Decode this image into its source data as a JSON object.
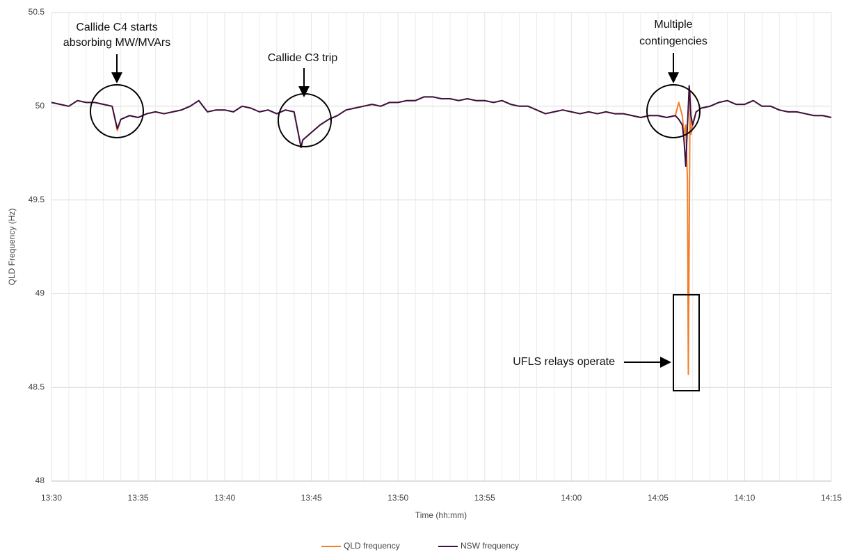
{
  "chart_data": {
    "type": "line",
    "y_label": "QLD Frequency (Hz)",
    "x_label": "Time (hh:mm)",
    "x": [
      810,
      810.5,
      811,
      811.5,
      812,
      812.5,
      813,
      813.5,
      813.8,
      814,
      814.5,
      815,
      815.5,
      816,
      816.5,
      817,
      817.5,
      818,
      818.5,
      819,
      819.5,
      820,
      820.5,
      821,
      821.5,
      822,
      822.5,
      823,
      823.5,
      824,
      824.4,
      824.5,
      825,
      825.5,
      826,
      826.5,
      827,
      827.5,
      828,
      828.5,
      829,
      829.5,
      830,
      830.5,
      831,
      831.5,
      832,
      832.5,
      833,
      833.5,
      834,
      834.5,
      835,
      835.5,
      836,
      836.5,
      837,
      837.5,
      838,
      838.5,
      839,
      839.5,
      840,
      840.5,
      841,
      841.5,
      842,
      842.5,
      843,
      843.5,
      844,
      844.5,
      845,
      845.5,
      846,
      846.2,
      846.4,
      846.5,
      846.6,
      846.7,
      846.75,
      846.8,
      846.85,
      846.9,
      847,
      847.2,
      847.5,
      848,
      848.5,
      849,
      849.5,
      850,
      850.5,
      851,
      851.5,
      852,
      852.5,
      853,
      853.5,
      854,
      854.5,
      855
    ],
    "series": [
      {
        "name": "QLD frequency",
        "color": "#f07f2a",
        "values": [
          50.02,
          50.01,
          50.0,
          50.03,
          50.02,
          50.02,
          50.01,
          50.0,
          49.87,
          49.93,
          49.95,
          49.94,
          49.96,
          49.97,
          49.96,
          49.97,
          49.98,
          50.0,
          50.03,
          49.97,
          49.98,
          49.98,
          49.97,
          50.0,
          49.99,
          49.97,
          49.98,
          49.96,
          49.98,
          49.97,
          49.78,
          49.82,
          49.86,
          49.9,
          49.93,
          49.95,
          49.98,
          49.99,
          50.0,
          50.01,
          50.0,
          50.02,
          50.02,
          50.03,
          50.03,
          50.05,
          50.05,
          50.04,
          50.04,
          50.03,
          50.04,
          50.03,
          50.03,
          50.02,
          50.03,
          50.01,
          50.0,
          50.0,
          49.98,
          49.96,
          49.97,
          49.98,
          49.97,
          49.96,
          49.97,
          49.96,
          49.97,
          49.96,
          49.96,
          49.95,
          49.94,
          49.95,
          49.95,
          49.94,
          49.95,
          50.02,
          49.95,
          49.85,
          49.9,
          49.6,
          48.57,
          49.3,
          50.08,
          49.85,
          49.9,
          49.97,
          49.99,
          50.0,
          50.02,
          50.03,
          50.01,
          50.01,
          50.03,
          50.0,
          50.0,
          49.98,
          49.97,
          49.97,
          49.96,
          49.95,
          49.95,
          49.94
        ]
      },
      {
        "name": "NSW frequency",
        "color": "#3a1145",
        "values": [
          50.02,
          50.01,
          50.0,
          50.03,
          50.02,
          50.02,
          50.01,
          50.0,
          49.88,
          49.93,
          49.95,
          49.94,
          49.96,
          49.97,
          49.96,
          49.97,
          49.98,
          50.0,
          50.03,
          49.97,
          49.98,
          49.98,
          49.97,
          50.0,
          49.99,
          49.97,
          49.98,
          49.96,
          49.98,
          49.97,
          49.78,
          49.82,
          49.86,
          49.9,
          49.93,
          49.95,
          49.98,
          49.99,
          50.0,
          50.01,
          50.0,
          50.02,
          50.02,
          50.03,
          50.03,
          50.05,
          50.05,
          50.04,
          50.04,
          50.03,
          50.04,
          50.03,
          50.03,
          50.02,
          50.03,
          50.01,
          50.0,
          50.0,
          49.98,
          49.96,
          49.97,
          49.98,
          49.97,
          49.96,
          49.97,
          49.96,
          49.97,
          49.96,
          49.96,
          49.95,
          49.94,
          49.95,
          49.95,
          49.94,
          49.95,
          49.93,
          49.9,
          49.82,
          49.68,
          49.9,
          50.0,
          50.11,
          50.03,
          49.95,
          49.9,
          49.97,
          49.99,
          50.0,
          50.02,
          50.03,
          50.01,
          50.01,
          50.03,
          50.0,
          50.0,
          49.98,
          49.97,
          49.97,
          49.96,
          49.95,
          49.95,
          49.94
        ]
      }
    ],
    "xlim": [
      810,
      855
    ],
    "xticks": [
      {
        "value": 810,
        "label": "13:30"
      },
      {
        "value": 815,
        "label": "13:35"
      },
      {
        "value": 820,
        "label": "13:40"
      },
      {
        "value": 825,
        "label": "13:45"
      },
      {
        "value": 830,
        "label": "13:50"
      },
      {
        "value": 835,
        "label": "13:55"
      },
      {
        "value": 840,
        "label": "14:00"
      },
      {
        "value": 845,
        "label": "14:05"
      },
      {
        "value": 850,
        "label": "14:10"
      },
      {
        "value": 855,
        "label": "14:15"
      }
    ],
    "x_minor_ticks": [
      811,
      812,
      813,
      814,
      816,
      817,
      818,
      819,
      821,
      822,
      823,
      824,
      826,
      827,
      828,
      829,
      831,
      832,
      833,
      834,
      836,
      837,
      838,
      839,
      841,
      842,
      843,
      844,
      846,
      847,
      848,
      849,
      851,
      852,
      853,
      854
    ],
    "ylim": [
      48,
      50.5
    ],
    "yticks": [
      48,
      48.5,
      49,
      49.5,
      50,
      50.5
    ],
    "grid": true,
    "annotations": [
      {
        "lines": [
          "Callide C4 starts",
          "absorbing MW/MVArs"
        ]
      },
      {
        "lines": [
          "Callide C3 trip"
        ]
      },
      {
        "lines": [
          "Multiple",
          "contingencies"
        ]
      },
      {
        "lines": [
          "UFLS relays operate"
        ]
      }
    ],
    "legend": "bottom"
  }
}
